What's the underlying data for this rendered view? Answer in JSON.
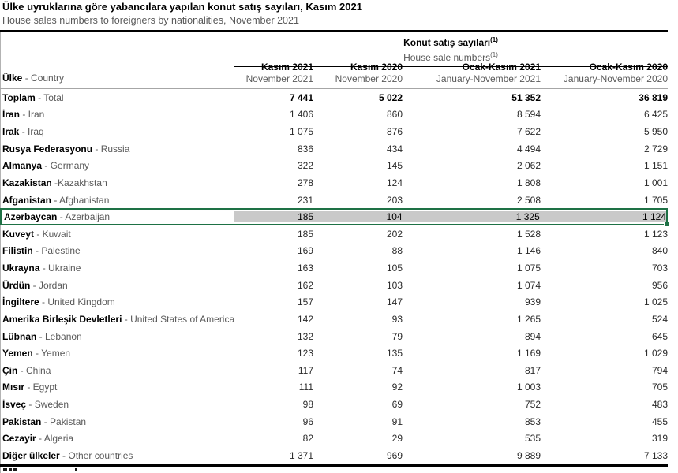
{
  "title": "Ülke uyruklarına göre yabancılara yapılan konut satış sayıları, Kasım 2021",
  "subtitle": "House sales numbers to foreigners by nationalities, November 2021",
  "table": {
    "group_header": {
      "tr": "Konut satış sayıları",
      "en": "House sale numbers",
      "footnote_marker": "(1)"
    },
    "country_header": {
      "tr": "Ülke",
      "sep_en": " - Country"
    },
    "columns": [
      {
        "tr": "Kasım 2021",
        "en": "November 2021"
      },
      {
        "tr": "Kasım 2020",
        "en": "November 2020"
      },
      {
        "tr": "Ocak-Kasım 2021",
        "en": "January-November 2021"
      },
      {
        "tr": "Ocak-Kasım 2020",
        "en": "January-November 2020"
      }
    ],
    "rows": [
      {
        "tr": "Toplam",
        "sep": " - ",
        "en": "Total",
        "values": [
          "7 441",
          "5 022",
          "51 352",
          "36 819"
        ],
        "bold": true
      },
      {
        "tr": "İran",
        "sep": " - ",
        "en": "Iran",
        "values": [
          "1 406",
          "860",
          "8 594",
          "6 425"
        ]
      },
      {
        "tr": "Irak",
        "sep": " - ",
        "en": "Iraq",
        "values": [
          "1 075",
          "876",
          "7 622",
          "5 950"
        ]
      },
      {
        "tr": "Rusya Federasyonu",
        "sep": " - ",
        "en": "Russia",
        "values": [
          "836",
          "434",
          "4 494",
          "2 729"
        ]
      },
      {
        "tr": "Almanya",
        "sep": " - ",
        "en": "Germany",
        "values": [
          "322",
          "145",
          "2 062",
          "1 151"
        ]
      },
      {
        "tr": "Kazakistan",
        "sep": " -",
        "en": "Kazakhstan",
        "values": [
          "278",
          "124",
          "1 808",
          "1 001"
        ]
      },
      {
        "tr": "Afganistan",
        "sep": " - ",
        "en": "Afghanistan",
        "values": [
          "231",
          "203",
          "2 508",
          "1 705"
        ]
      },
      {
        "tr": "Azerbaycan",
        "sep": " - ",
        "en": "Azerbaijan",
        "values": [
          "185",
          "104",
          "1 325",
          "1 124"
        ],
        "highlighted": true
      },
      {
        "tr": "Kuveyt",
        "sep": " - ",
        "en": "Kuwait",
        "values": [
          "185",
          "202",
          "1 528",
          "1 123"
        ]
      },
      {
        "tr": "Filistin",
        "sep": " - ",
        "en": "Palestine",
        "values": [
          "169",
          "88",
          "1 146",
          "840"
        ]
      },
      {
        "tr": "Ukrayna",
        "sep": " - ",
        "en": "Ukraine",
        "values": [
          "163",
          "105",
          "1 075",
          "703"
        ]
      },
      {
        "tr": "Ürdün",
        "sep": " - ",
        "en": "Jordan",
        "values": [
          "162",
          "103",
          "1 074",
          "956"
        ]
      },
      {
        "tr": "İngiltere",
        "sep": " - ",
        "en": "United Kingdom",
        "values": [
          "157",
          "147",
          "939",
          "1 025"
        ]
      },
      {
        "tr": "Amerika Birleşik Devletleri",
        "sep": " - ",
        "en": "United States of America",
        "values": [
          "142",
          "93",
          "1 265",
          "524"
        ]
      },
      {
        "tr": "Lübnan",
        "sep": " - ",
        "en": "Lebanon",
        "values": [
          "132",
          "79",
          "894",
          "645"
        ]
      },
      {
        "tr": "Yemen",
        "sep": " - ",
        "en": "Yemen",
        "values": [
          "123",
          "135",
          "1 169",
          "1 029"
        ]
      },
      {
        "tr": "Çin",
        "sep": " - ",
        "en": "China",
        "values": [
          "117",
          "74",
          "817",
          "794"
        ]
      },
      {
        "tr": "Mısır",
        "sep": " - ",
        "en": "Egypt",
        "values": [
          "111",
          "92",
          "1 003",
          "705"
        ]
      },
      {
        "tr": "İsveç",
        "sep": " - ",
        "en": "Sweden",
        "values": [
          "98",
          "69",
          "752",
          "483"
        ]
      },
      {
        "tr": "Pakistan",
        "sep": " - ",
        "en": "Pakistan",
        "values": [
          "96",
          "91",
          "853",
          "455"
        ]
      },
      {
        "tr": "Cezayir",
        "sep": " - ",
        "en": "Algeria",
        "values": [
          "82",
          "29",
          "535",
          "319"
        ]
      },
      {
        "tr": "Diğer ülkeler",
        "sep": " - ",
        "en": "Other countries",
        "values": [
          "1 371",
          "969",
          "9 889",
          "7 133"
        ]
      }
    ]
  },
  "highlight": {
    "fill": "#c9c9c9",
    "border": "#1e7145"
  }
}
